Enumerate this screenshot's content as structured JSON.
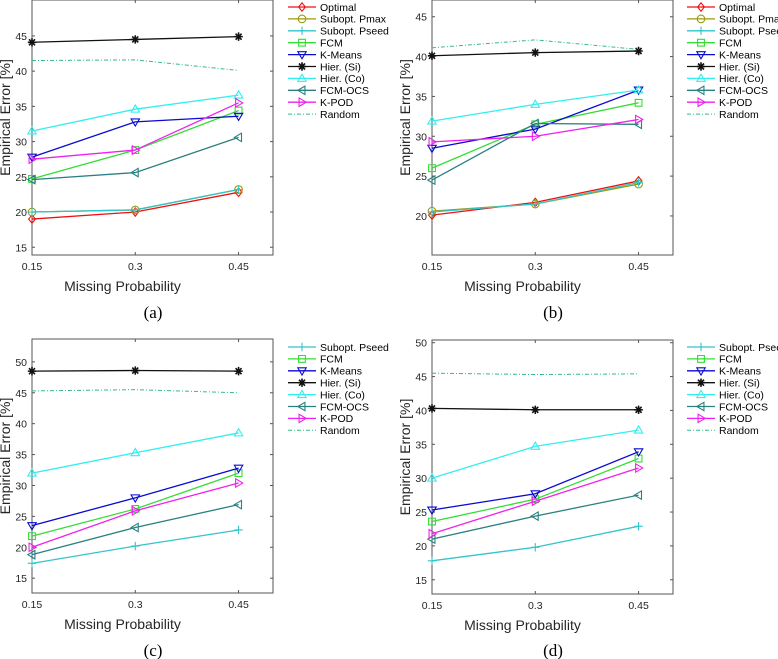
{
  "chart_data": [
    {
      "type": "line",
      "caption": "(a)",
      "xlabel": "Missing Probability",
      "ylabel": "Empirical Error [%]",
      "x": [
        0.15,
        0.3,
        0.45
      ],
      "xticks": [
        "0.15",
        "0.3",
        "0.45"
      ],
      "xlim": [
        0.15,
        0.5
      ],
      "yticks": [
        15,
        20,
        25,
        30,
        35,
        40,
        45
      ],
      "ylim": [
        13.9,
        50.1
      ],
      "legend": "right-outside-top",
      "series": [
        {
          "name": "Optimal",
          "values": [
            19.0,
            20.0,
            22.8
          ]
        },
        {
          "name": "Subopt. Pmax",
          "values": [
            20.0,
            20.3,
            23.2
          ]
        },
        {
          "name": "Subopt. Pseed",
          "values": [
            20.0,
            20.3,
            23.2
          ]
        },
        {
          "name": "FCM",
          "values": [
            24.7,
            28.8,
            34.4
          ]
        },
        {
          "name": "K-Means",
          "values": [
            27.8,
            32.8,
            33.6
          ]
        },
        {
          "name": "Hier. (Si)",
          "values": [
            44.1,
            44.5,
            44.9
          ]
        },
        {
          "name": "Hier. (Co)",
          "values": [
            31.5,
            34.6,
            36.6
          ]
        },
        {
          "name": "FCM-OCS",
          "values": [
            24.6,
            25.6,
            30.6
          ]
        },
        {
          "name": "K-POD",
          "values": [
            27.5,
            28.8,
            35.5
          ]
        },
        {
          "name": "Random",
          "values": [
            41.5,
            41.6,
            40.1
          ]
        }
      ]
    },
    {
      "type": "line",
      "caption": "(b)",
      "xlabel": "Missing Probability",
      "ylabel": "Empirical Error [%]",
      "x": [
        0.15,
        0.3,
        0.45
      ],
      "xticks": [
        "0.15",
        "0.3",
        "0.45"
      ],
      "xlim": [
        0.15,
        0.5
      ],
      "yticks": [
        20,
        25,
        30,
        35,
        40,
        45
      ],
      "ylim": [
        15.1,
        47.1
      ],
      "legend": "right-outside-top",
      "series": [
        {
          "name": "Optimal",
          "values": [
            20.1,
            21.7,
            24.4
          ]
        },
        {
          "name": "Subopt. Pmax",
          "values": [
            20.6,
            21.5,
            24.0
          ]
        },
        {
          "name": "Subopt. Pseed",
          "values": [
            20.5,
            21.5,
            24.2
          ]
        },
        {
          "name": "FCM",
          "values": [
            26.0,
            31.5,
            34.2
          ]
        },
        {
          "name": "K-Means",
          "values": [
            28.5,
            30.9,
            35.8
          ]
        },
        {
          "name": "Hier. (Si)",
          "values": [
            40.1,
            40.5,
            40.7
          ]
        },
        {
          "name": "Hier. (Co)",
          "values": [
            31.9,
            34.0,
            35.8
          ]
        },
        {
          "name": "FCM-OCS",
          "values": [
            24.5,
            31.6,
            31.5
          ]
        },
        {
          "name": "K-POD",
          "values": [
            29.3,
            30.0,
            32.1
          ]
        },
        {
          "name": "Random",
          "values": [
            41.1,
            42.1,
            40.9
          ]
        }
      ]
    },
    {
      "type": "line",
      "caption": "(c)",
      "xlabel": "Missing Probability",
      "ylabel": "Empirical Error [%]",
      "x": [
        0.15,
        0.3,
        0.45
      ],
      "xticks": [
        "0.15",
        "0.3",
        "0.45"
      ],
      "xlim": [
        0.15,
        0.5
      ],
      "yticks": [
        15,
        20,
        25,
        30,
        35,
        40,
        45,
        50
      ],
      "ylim": [
        12.6,
        53.7
      ],
      "legend": "right-outside-top",
      "series": [
        {
          "name": "Subopt. Pseed",
          "values": [
            17.4,
            20.2,
            22.8
          ]
        },
        {
          "name": "FCM",
          "values": [
            21.8,
            26.2,
            32.0
          ]
        },
        {
          "name": "K-Means",
          "values": [
            23.5,
            28.0,
            32.8
          ]
        },
        {
          "name": "Hier. (Si)",
          "values": [
            48.5,
            48.6,
            48.5
          ]
        },
        {
          "name": "Hier. (Co)",
          "values": [
            32.0,
            35.3,
            38.5
          ]
        },
        {
          "name": "FCM-OCS",
          "values": [
            18.8,
            23.2,
            26.9
          ]
        },
        {
          "name": "K-POD",
          "values": [
            20.0,
            25.9,
            30.4
          ]
        },
        {
          "name": "Random",
          "values": [
            45.3,
            45.5,
            45.0
          ]
        }
      ]
    },
    {
      "type": "line",
      "caption": "(d)",
      "xlabel": "Missing Probability",
      "ylabel": "Empirical Error [%]",
      "x": [
        0.15,
        0.3,
        0.45
      ],
      "xticks": [
        "0.15",
        "0.3",
        "0.45"
      ],
      "xlim": [
        0.15,
        0.5
      ],
      "yticks": [
        15,
        20,
        25,
        30,
        35,
        40,
        45,
        50
      ],
      "ylim": [
        12.9,
        50.4
      ],
      "legend": "right-outside-top",
      "series": [
        {
          "name": "Subopt. Pseed",
          "values": [
            17.8,
            19.8,
            22.9
          ]
        },
        {
          "name": "FCM",
          "values": [
            23.6,
            26.9,
            32.9
          ]
        },
        {
          "name": "K-Means",
          "values": [
            25.3,
            27.7,
            33.9
          ]
        },
        {
          "name": "Hier. (Si)",
          "values": [
            40.3,
            40.1,
            40.1
          ]
        },
        {
          "name": "Hier. (Co)",
          "values": [
            30.0,
            34.7,
            37.1
          ]
        },
        {
          "name": "FCM-OCS",
          "values": [
            21.0,
            24.4,
            27.5
          ]
        },
        {
          "name": "K-POD",
          "values": [
            21.8,
            26.6,
            31.5
          ]
        },
        {
          "name": "Random",
          "values": [
            45.5,
            45.3,
            45.4
          ]
        }
      ]
    }
  ],
  "series_style": {
    "Optimal": {
      "color": "#ee1111",
      "marker": "diamond"
    },
    "Subopt. Pmax": {
      "color": "#9a9a10",
      "marker": "circle"
    },
    "Subopt. Pseed": {
      "color": "#33c4cc",
      "marker": "plus"
    },
    "FCM": {
      "color": "#33dd33",
      "marker": "square"
    },
    "K-Means": {
      "color": "#0a0ad0",
      "marker": "triangle-down"
    },
    "Hier. (Si)": {
      "color": "#111111",
      "marker": "asterisk"
    },
    "Hier. (Co)": {
      "color": "#33eeee",
      "marker": "triangle-up"
    },
    "FCM-OCS": {
      "color": "#2a8080",
      "marker": "triangle-left"
    },
    "K-POD": {
      "color": "#ee22ee",
      "marker": "triangle-right"
    },
    "Random": {
      "color": "#33bb88",
      "marker": "none",
      "dashed": true
    }
  }
}
